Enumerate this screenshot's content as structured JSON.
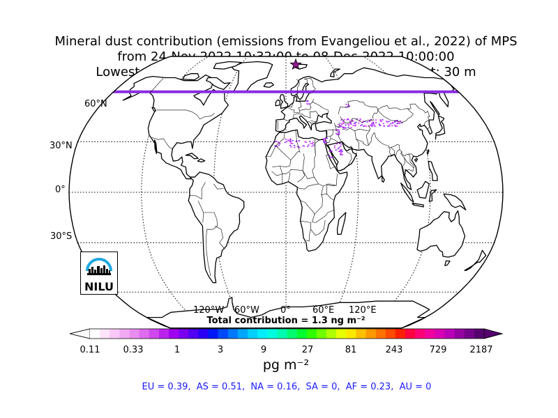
{
  "title": {
    "line1": "Mineral dust contribution (emissions from Evangeliou et al., 2022) of MPS",
    "line2": "from 24-Nov-2022 10:32:00 to 08-Dec-2022 10:00:00",
    "line3": "Lowest release height: 0 m       Highest release height: 30 m"
  },
  "map": {
    "lat_labels": [
      "60°N",
      "30°N",
      "0°",
      "30°S"
    ],
    "lon_labels": [
      "120°W",
      "60°W",
      "0°",
      "60°E",
      "120°E"
    ],
    "station_marker": "star",
    "station_color": "#8b1a8b",
    "land_color": "#ffffff",
    "coast_color": "#000000",
    "deposit_color": "#cc33ff"
  },
  "total_contribution": "Total contribution = 1.3 ng m⁻²",
  "colorbar": {
    "tick_labels": [
      "0.11",
      "0.33",
      "1",
      "3",
      "9",
      "27",
      "81",
      "243",
      "729",
      "2187"
    ],
    "units": "pg m⁻²",
    "colors": [
      "#ffffff",
      "#fde4fb",
      "#f9c8f7",
      "#f2aaf3",
      "#e98cf0",
      "#de6cee",
      "#cf4aee",
      "#bb22ee",
      "#a000f0",
      "#7a00f0",
      "#5000f2",
      "#2a00f5",
      "#0018f8",
      "#0048fb",
      "#0078ff",
      "#00a6ff",
      "#00cfff",
      "#00eeff",
      "#00ffe0",
      "#00ffb0",
      "#00ff70",
      "#00ff30",
      "#30ff00",
      "#70ff00",
      "#b0ff00",
      "#e8ff00",
      "#ffe800",
      "#ffc000",
      "#ff9a00",
      "#ff7400",
      "#ff4c00",
      "#ff2000",
      "#ff0040",
      "#ff0078",
      "#f000a0",
      "#d800b4",
      "#b800b8",
      "#9400a0",
      "#74008a",
      "#560070"
    ],
    "under_color": "#ffffff",
    "over_color": "#560070"
  },
  "regions": "EU = 0.39,  AS = 0.51,  NA = 0.16,  SA = 0,  AF = 0.23,  AU = 0",
  "logo": {
    "text": "NILU",
    "arc_color": "#1fa7e0"
  }
}
